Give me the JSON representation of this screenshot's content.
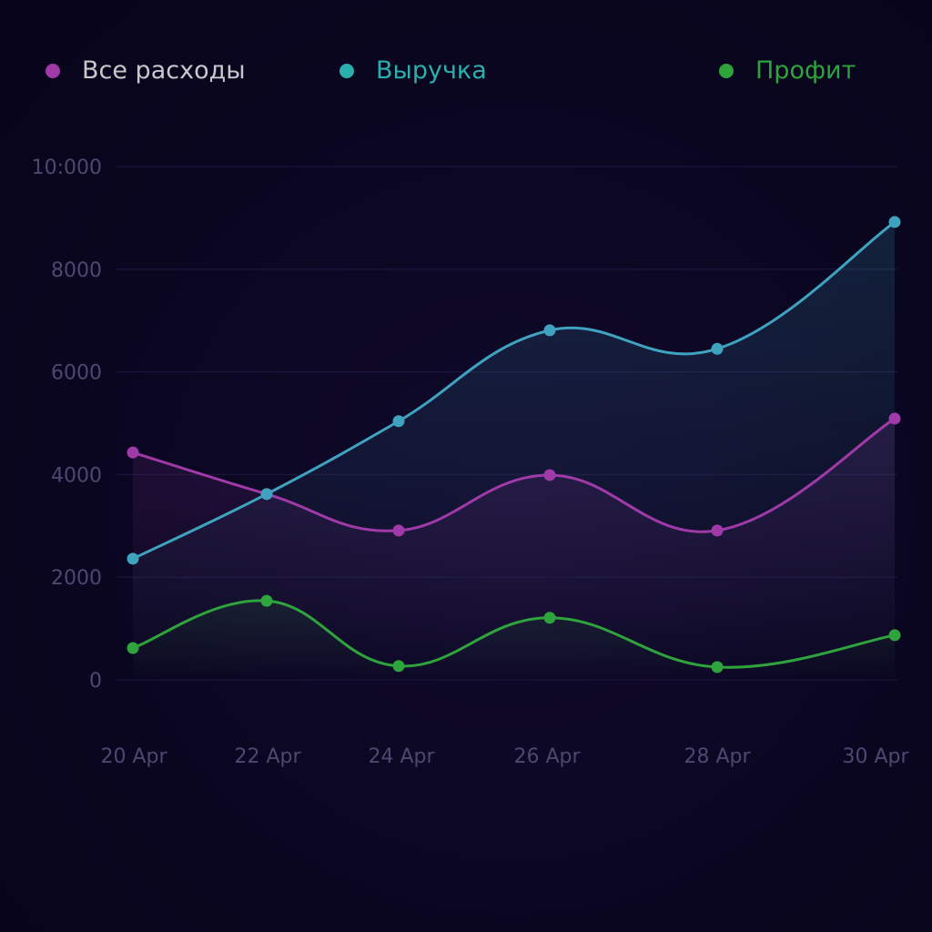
{
  "legend": {
    "items": [
      {
        "label": "Все расходы",
        "color": "#a03aa8",
        "text_color": "#c8c8cc"
      },
      {
        "label": "Выручка",
        "color": "#2ab0ac",
        "text_color": "#2ab0ac"
      },
      {
        "label": "Профит",
        "color": "#2fa33c",
        "text_color": "#2fa33c"
      }
    ]
  },
  "chart_data": {
    "type": "line",
    "title": "",
    "xlabel": "",
    "ylabel": "",
    "categories": [
      "20 Apr",
      "22 Apr",
      "24 Apr",
      "26 Apr",
      "28 Apr",
      "30 Apr"
    ],
    "y_ticks": [
      "10:000",
      "8000",
      "6000",
      "4000",
      "2000",
      "0"
    ],
    "ylim": [
      0,
      10000
    ],
    "grid": true,
    "legend_position": "top",
    "smooth": true,
    "series": [
      {
        "name": "Все расходы",
        "color": "#a03aa8",
        "values": [
          4430,
          3620,
          2910,
          3990,
          2910,
          5090
        ]
      },
      {
        "name": "Выручка",
        "color": "#3fa3bf",
        "values": [
          2360,
          3620,
          5040,
          6810,
          6450,
          8920
        ]
      },
      {
        "name": "Профит",
        "color": "#2fa33c",
        "values": [
          620,
          1540,
          270,
          1210,
          250,
          870
        ]
      }
    ]
  }
}
